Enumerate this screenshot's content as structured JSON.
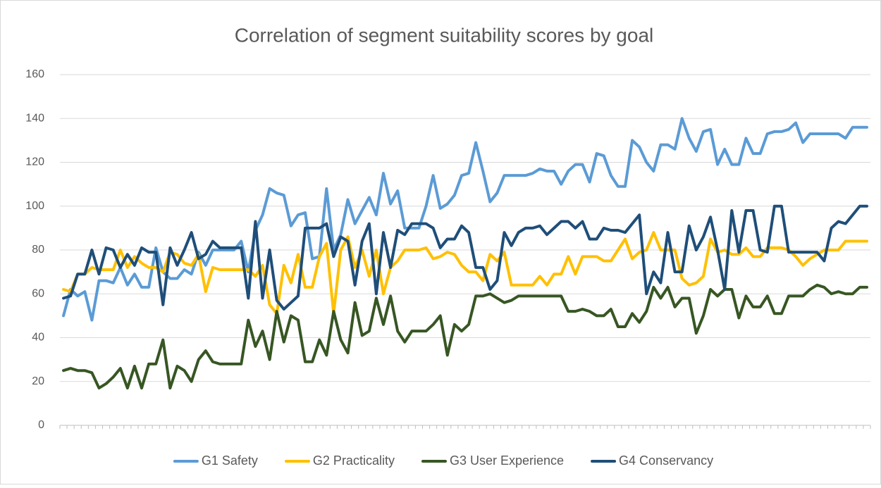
{
  "chart_data": {
    "type": "line",
    "title": "Correlation of segment suitability scores by goal",
    "categories": [
      null,
      null,
      null,
      null,
      null,
      null,
      null,
      null,
      null,
      null,
      null,
      null,
      null,
      null,
      null,
      null,
      null,
      null,
      null,
      null,
      null,
      null,
      null,
      null,
      null,
      null,
      null,
      null,
      null,
      null,
      null,
      null,
      null,
      null,
      null,
      null,
      null,
      null,
      null,
      null,
      null,
      null,
      null,
      null,
      null,
      null,
      null,
      null,
      null,
      null,
      null,
      null,
      null,
      null,
      null,
      null,
      null,
      null,
      null,
      null,
      null,
      null,
      null,
      null,
      null,
      null,
      null,
      null,
      null,
      null,
      null,
      null,
      null,
      null,
      null,
      null,
      null,
      null,
      null,
      null,
      null,
      null,
      null,
      null,
      null,
      null,
      null,
      null,
      null,
      null,
      null,
      null,
      null,
      null,
      null,
      null,
      null,
      null,
      null,
      null,
      null,
      null,
      null,
      null,
      null,
      null,
      null,
      null,
      null,
      null,
      null,
      null,
      null,
      null
    ],
    "series": [
      {
        "name": "G1 Safety",
        "color": "#5b9bd5",
        "values": [
          50,
          62,
          59,
          61,
          48,
          66,
          66,
          65,
          72,
          64,
          69,
          63,
          63,
          81,
          70,
          67,
          67,
          71,
          69,
          79,
          73,
          80,
          80,
          80,
          80,
          84,
          70,
          89,
          96,
          108,
          106,
          105,
          91,
          96,
          97,
          76,
          77,
          108,
          80,
          87,
          103,
          92,
          98,
          104,
          96,
          115,
          101,
          107,
          90,
          90,
          90,
          100,
          114,
          99,
          101,
          105,
          114,
          115,
          129,
          116,
          102,
          106,
          114,
          114,
          114,
          114,
          115,
          117,
          116,
          116,
          110,
          116,
          119,
          119,
          111,
          124,
          123,
          114,
          109,
          109,
          130,
          127,
          120,
          116,
          128,
          128,
          126,
          140,
          131,
          125,
          134,
          135,
          119,
          126,
          119,
          119,
          131,
          124,
          124,
          133,
          134,
          134,
          135,
          138,
          129,
          133,
          133,
          133,
          133,
          133,
          131,
          136,
          136,
          136
        ]
      },
      {
        "name": "G2 Practicality",
        "color": "#ffc000",
        "values": [
          62,
          61,
          69,
          69,
          72,
          71,
          71,
          71,
          80,
          72,
          77,
          74,
          72,
          72,
          70,
          79,
          78,
          74,
          73,
          78,
          61,
          72,
          71,
          71,
          71,
          71,
          71,
          68,
          73,
          55,
          51,
          73,
          65,
          78,
          63,
          63,
          77,
          83,
          51,
          80,
          86,
          72,
          80,
          68,
          80,
          60,
          72,
          75,
          80,
          80,
          80,
          81,
          76,
          77,
          79,
          78,
          73,
          70,
          70,
          66,
          78,
          75,
          79,
          64,
          64,
          64,
          64,
          68,
          64,
          69,
          69,
          77,
          69,
          77,
          77,
          77,
          75,
          75,
          80,
          85,
          76,
          79,
          80,
          88,
          80,
          80,
          80,
          67,
          64,
          65,
          68,
          85,
          79,
          80,
          78,
          78,
          81,
          77,
          77,
          81,
          81,
          81,
          80,
          77,
          73,
          76,
          78,
          80,
          80,
          80,
          84,
          84,
          84,
          84
        ]
      },
      {
        "name": "G3 User Experience",
        "color": "#375623",
        "values": [
          25,
          26,
          25,
          25,
          24,
          17,
          19,
          22,
          26,
          17,
          27,
          17,
          28,
          28,
          39,
          17,
          27,
          25,
          20,
          30,
          34,
          29,
          28,
          28,
          28,
          28,
          48,
          36,
          43,
          30,
          52,
          38,
          50,
          48,
          29,
          29,
          39,
          32,
          52,
          39,
          33,
          56,
          41,
          43,
          58,
          46,
          59,
          43,
          38,
          43,
          43,
          43,
          46,
          50,
          32,
          46,
          43,
          46,
          59,
          59,
          60,
          58,
          56,
          57,
          59,
          59,
          59,
          59,
          59,
          59,
          59,
          52,
          52,
          53,
          52,
          50,
          50,
          53,
          45,
          45,
          51,
          47,
          52,
          63,
          58,
          63,
          54,
          58,
          58,
          42,
          50,
          62,
          59,
          62,
          62,
          49,
          59,
          54,
          54,
          59,
          51,
          51,
          59,
          59,
          59,
          62,
          64,
          63,
          60,
          61,
          60,
          60,
          63,
          63
        ]
      },
      {
        "name": "G4 Conservancy",
        "color": "#1f4e79",
        "values": [
          58,
          59,
          69,
          69,
          80,
          69,
          81,
          80,
          72,
          78,
          73,
          81,
          79,
          79,
          55,
          81,
          73,
          80,
          88,
          76,
          78,
          84,
          81,
          81,
          81,
          81,
          58,
          93,
          58,
          80,
          57,
          53,
          56,
          59,
          90,
          90,
          90,
          92,
          77,
          86,
          84,
          64,
          84,
          92,
          60,
          88,
          72,
          89,
          87,
          92,
          92,
          92,
          90,
          81,
          85,
          85,
          91,
          88,
          72,
          72,
          62,
          66,
          88,
          82,
          88,
          90,
          90,
          91,
          87,
          90,
          93,
          93,
          90,
          93,
          85,
          85,
          90,
          89,
          89,
          88,
          92,
          96,
          60,
          70,
          65,
          88,
          70,
          70,
          91,
          80,
          86,
          95,
          80,
          62,
          98,
          79,
          98,
          98,
          80,
          79,
          100,
          100,
          79,
          79,
          79,
          79,
          79,
          75,
          90,
          93,
          92,
          96,
          100,
          100
        ]
      }
    ],
    "ylim": [
      0,
      160
    ],
    "yticks": [
      0,
      20,
      40,
      60,
      80,
      100,
      120,
      140,
      160
    ],
    "grid": true,
    "legend": "bottom"
  }
}
